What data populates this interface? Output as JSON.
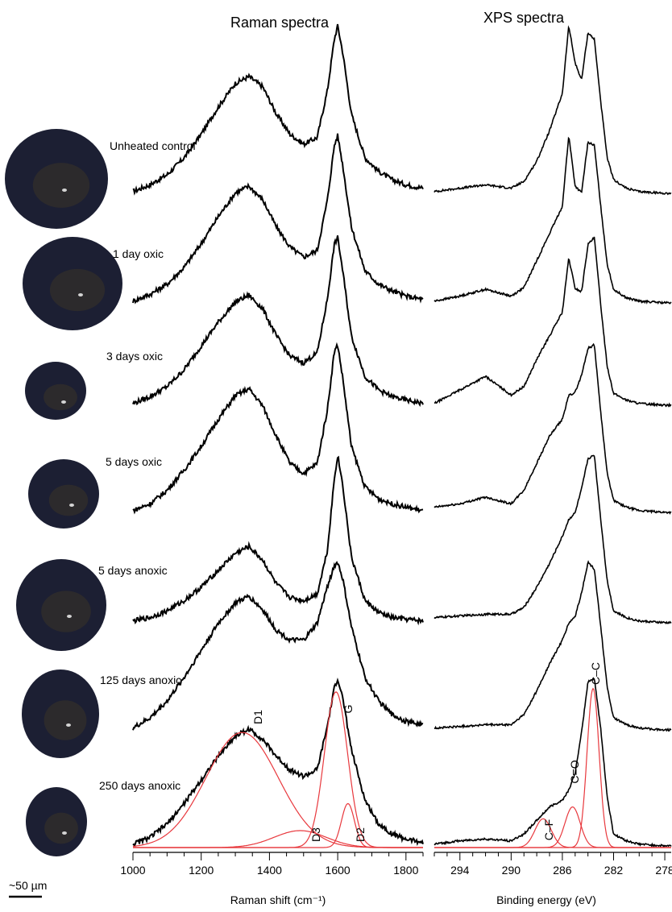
{
  "chart_data": [
    {
      "type": "line",
      "title": "Raman spectra",
      "xlabel": "Raman shift (cm⁻¹)",
      "xlim": [
        1000,
        1850
      ],
      "xticks": [
        1000,
        1200,
        1400,
        1600,
        1800
      ],
      "normalized_stacked_offset": true,
      "series": [
        {
          "name": "Unheated control",
          "x": [
            1000,
            1050,
            1100,
            1150,
            1200,
            1250,
            1300,
            1340,
            1380,
            1420,
            1460,
            1500,
            1540,
            1570,
            1590,
            1600,
            1615,
            1640,
            1680,
            1720,
            1760,
            1800,
            1850
          ],
          "y": [
            0.02,
            0.06,
            0.12,
            0.22,
            0.36,
            0.52,
            0.66,
            0.7,
            0.64,
            0.48,
            0.36,
            0.3,
            0.34,
            0.62,
            0.92,
            1.0,
            0.84,
            0.48,
            0.22,
            0.14,
            0.09,
            0.06,
            0.04
          ]
        },
        {
          "name": "1 day oxic",
          "x": [
            1000,
            1050,
            1100,
            1150,
            1200,
            1250,
            1300,
            1340,
            1380,
            1420,
            1460,
            1500,
            1540,
            1570,
            1590,
            1600,
            1615,
            1640,
            1680,
            1720,
            1760,
            1800,
            1850
          ],
          "y": [
            0.02,
            0.06,
            0.12,
            0.22,
            0.36,
            0.52,
            0.66,
            0.7,
            0.62,
            0.46,
            0.34,
            0.28,
            0.32,
            0.62,
            0.94,
            1.0,
            0.82,
            0.46,
            0.2,
            0.12,
            0.08,
            0.05,
            0.03
          ]
        },
        {
          "name": "3 days oxic",
          "x": [
            1000,
            1050,
            1100,
            1150,
            1200,
            1250,
            1300,
            1340,
            1380,
            1420,
            1460,
            1500,
            1540,
            1570,
            1590,
            1600,
            1615,
            1640,
            1680,
            1720,
            1760,
            1800,
            1850
          ],
          "y": [
            0.02,
            0.06,
            0.12,
            0.22,
            0.36,
            0.5,
            0.62,
            0.66,
            0.58,
            0.42,
            0.3,
            0.26,
            0.32,
            0.64,
            0.96,
            1.0,
            0.8,
            0.42,
            0.18,
            0.1,
            0.06,
            0.04,
            0.02
          ]
        },
        {
          "name": "5 days oxic",
          "x": [
            1000,
            1050,
            1100,
            1150,
            1200,
            1250,
            1300,
            1340,
            1380,
            1420,
            1460,
            1500,
            1540,
            1570,
            1590,
            1600,
            1615,
            1640,
            1680,
            1720,
            1760,
            1800,
            1850
          ],
          "y": [
            0.02,
            0.06,
            0.14,
            0.26,
            0.4,
            0.56,
            0.7,
            0.74,
            0.64,
            0.46,
            0.3,
            0.24,
            0.3,
            0.62,
            0.96,
            1.0,
            0.8,
            0.4,
            0.16,
            0.09,
            0.06,
            0.04,
            0.02
          ]
        },
        {
          "name": "5 days anoxic",
          "x": [
            1000,
            1050,
            1100,
            1150,
            1200,
            1250,
            1300,
            1340,
            1380,
            1420,
            1460,
            1500,
            1540,
            1570,
            1590,
            1600,
            1615,
            1640,
            1680,
            1720,
            1760,
            1800,
            1850
          ],
          "y": [
            0.02,
            0.04,
            0.08,
            0.14,
            0.22,
            0.32,
            0.42,
            0.46,
            0.38,
            0.24,
            0.16,
            0.14,
            0.18,
            0.44,
            0.86,
            1.0,
            0.82,
            0.4,
            0.14,
            0.07,
            0.04,
            0.03,
            0.02
          ]
        },
        {
          "name": "125 days anoxic",
          "x": [
            1000,
            1050,
            1100,
            1150,
            1200,
            1250,
            1300,
            1340,
            1380,
            1420,
            1460,
            1500,
            1540,
            1570,
            1590,
            1600,
            1615,
            1640,
            1680,
            1720,
            1760,
            1800,
            1850
          ],
          "y": [
            0.02,
            0.08,
            0.18,
            0.32,
            0.48,
            0.64,
            0.76,
            0.8,
            0.72,
            0.6,
            0.54,
            0.54,
            0.64,
            0.86,
            0.98,
            1.0,
            0.9,
            0.62,
            0.32,
            0.18,
            0.1,
            0.06,
            0.04
          ]
        },
        {
          "name": "250 days anoxic",
          "x": [
            1000,
            1050,
            1100,
            1150,
            1200,
            1250,
            1300,
            1340,
            1380,
            1420,
            1460,
            1500,
            1540,
            1570,
            1590,
            1600,
            1615,
            1640,
            1680,
            1720,
            1760,
            1800,
            1850
          ],
          "y": [
            0.02,
            0.06,
            0.14,
            0.26,
            0.4,
            0.54,
            0.66,
            0.7,
            0.64,
            0.54,
            0.46,
            0.42,
            0.46,
            0.72,
            0.94,
            1.0,
            0.88,
            0.58,
            0.28,
            0.14,
            0.08,
            0.05,
            0.03
          ]
        }
      ],
      "fit_components": [
        {
          "name": "D1",
          "center": 1320,
          "width": 250,
          "height": 0.68
        },
        {
          "name": "D3",
          "center": 1490,
          "width": 180,
          "height": 0.1
        },
        {
          "name": "G",
          "center": 1595,
          "width": 80,
          "height": 0.92
        },
        {
          "name": "D2",
          "center": 1630,
          "width": 45,
          "height": 0.26
        }
      ],
      "fit_labels": [
        "D1",
        "D3",
        "G",
        "D2"
      ]
    },
    {
      "type": "line",
      "title": "XPS spectra",
      "xlabel": "Binding energy (eV)",
      "xlim": [
        296,
        277.5
      ],
      "xticks": [
        294,
        290,
        286,
        282,
        278
      ],
      "normalized_stacked_offset": true,
      "series": [
        {
          "name": "Unheated control",
          "x": [
            296,
            294,
            292,
            290,
            289,
            288,
            287,
            286,
            285.5,
            285,
            284.5,
            284,
            283.5,
            283,
            282.5,
            282,
            281,
            280,
            278,
            277.5
          ],
          "y": [
            0.02,
            0.04,
            0.06,
            0.04,
            0.08,
            0.2,
            0.38,
            0.6,
            1.0,
            0.78,
            0.68,
            0.96,
            0.92,
            0.55,
            0.22,
            0.09,
            0.04,
            0.02,
            0.01,
            0.01
          ]
        },
        {
          "name": "1 day oxic",
          "x": [
            296,
            294,
            292,
            290,
            289,
            288,
            287,
            286,
            285.5,
            285,
            284.5,
            284,
            283.5,
            283,
            282.5,
            282,
            281,
            280,
            278,
            277.5
          ],
          "y": [
            0.02,
            0.05,
            0.09,
            0.05,
            0.1,
            0.26,
            0.42,
            0.58,
            1.0,
            0.7,
            0.66,
            0.96,
            0.94,
            0.58,
            0.24,
            0.09,
            0.04,
            0.02,
            0.01,
            0.01
          ]
        },
        {
          "name": "3 days oxic",
          "x": [
            296,
            294,
            292,
            290,
            289,
            288,
            287,
            286,
            285.5,
            285,
            284.5,
            284,
            283.5,
            283,
            282.5,
            282,
            281,
            280,
            278,
            277.5
          ],
          "y": [
            0.02,
            0.1,
            0.18,
            0.07,
            0.12,
            0.28,
            0.42,
            0.56,
            0.88,
            0.7,
            0.68,
            0.96,
            1.0,
            0.6,
            0.24,
            0.08,
            0.04,
            0.02,
            0.01,
            0.01
          ]
        },
        {
          "name": "5 days oxic",
          "x": [
            296,
            294,
            292,
            290,
            289,
            288,
            287,
            286,
            285.5,
            285,
            284.5,
            284,
            283.5,
            283,
            282.5,
            282,
            281,
            280,
            278,
            277.5
          ],
          "y": [
            0.04,
            0.06,
            0.1,
            0.06,
            0.14,
            0.3,
            0.46,
            0.56,
            0.7,
            0.72,
            0.82,
            0.98,
            1.0,
            0.6,
            0.24,
            0.08,
            0.04,
            0.02,
            0.01,
            0.01
          ]
        },
        {
          "name": "5 days anoxic",
          "x": [
            296,
            294,
            292,
            290,
            289,
            288,
            287,
            286,
            285.5,
            285,
            284.5,
            284,
            283.5,
            283,
            282.5,
            282,
            281,
            280,
            278,
            277.5
          ],
          "y": [
            0.04,
            0.05,
            0.06,
            0.06,
            0.1,
            0.22,
            0.36,
            0.52,
            0.62,
            0.66,
            0.8,
            0.98,
            1.0,
            0.62,
            0.26,
            0.08,
            0.04,
            0.02,
            0.01,
            0.01
          ]
        },
        {
          "name": "125 days anoxic",
          "x": [
            296,
            294,
            292,
            290,
            289,
            288,
            287,
            286,
            285.5,
            285,
            284.5,
            284,
            283.5,
            283,
            282.5,
            282,
            281,
            280,
            278,
            277.5
          ],
          "y": [
            0.02,
            0.03,
            0.04,
            0.04,
            0.1,
            0.24,
            0.4,
            0.54,
            0.64,
            0.68,
            0.82,
            1.0,
            0.96,
            0.62,
            0.26,
            0.08,
            0.04,
            0.02,
            0.01,
            0.01
          ]
        },
        {
          "name": "250 days anoxic",
          "x": [
            296,
            294,
            292,
            290,
            289,
            288,
            287,
            286,
            285.5,
            285,
            284.5,
            284,
            283.5,
            283,
            282.5,
            282,
            281,
            280,
            278,
            277.5
          ],
          "y": [
            0.02,
            0.04,
            0.05,
            0.04,
            0.08,
            0.16,
            0.24,
            0.28,
            0.34,
            0.44,
            0.68,
            0.98,
            1.0,
            0.7,
            0.3,
            0.08,
            0.04,
            0.02,
            0.01,
            0.01
          ]
        }
      ],
      "fit_components": [
        {
          "name": "C–C",
          "center": 283.6,
          "width": 1.1,
          "height": 0.94
        },
        {
          "name": "C=O",
          "center": 285.2,
          "width": 1.4,
          "height": 0.24
        },
        {
          "name": "C–F",
          "center": 287.5,
          "width": 1.5,
          "height": 0.17
        }
      ],
      "fit_labels": [
        "C–C",
        "C=O",
        "C–F"
      ]
    }
  ],
  "sample_labels": [
    "Unheated control",
    "1 day oxic",
    "3 days oxic",
    "5 days oxic",
    "5 days anoxic",
    "125 days anoxic",
    "250 days anoxic"
  ],
  "scale_bar_label": "~50 µm",
  "colors": {
    "spectrum": "#000000",
    "fit": "#e8383d",
    "particle": "#1c1f33"
  }
}
